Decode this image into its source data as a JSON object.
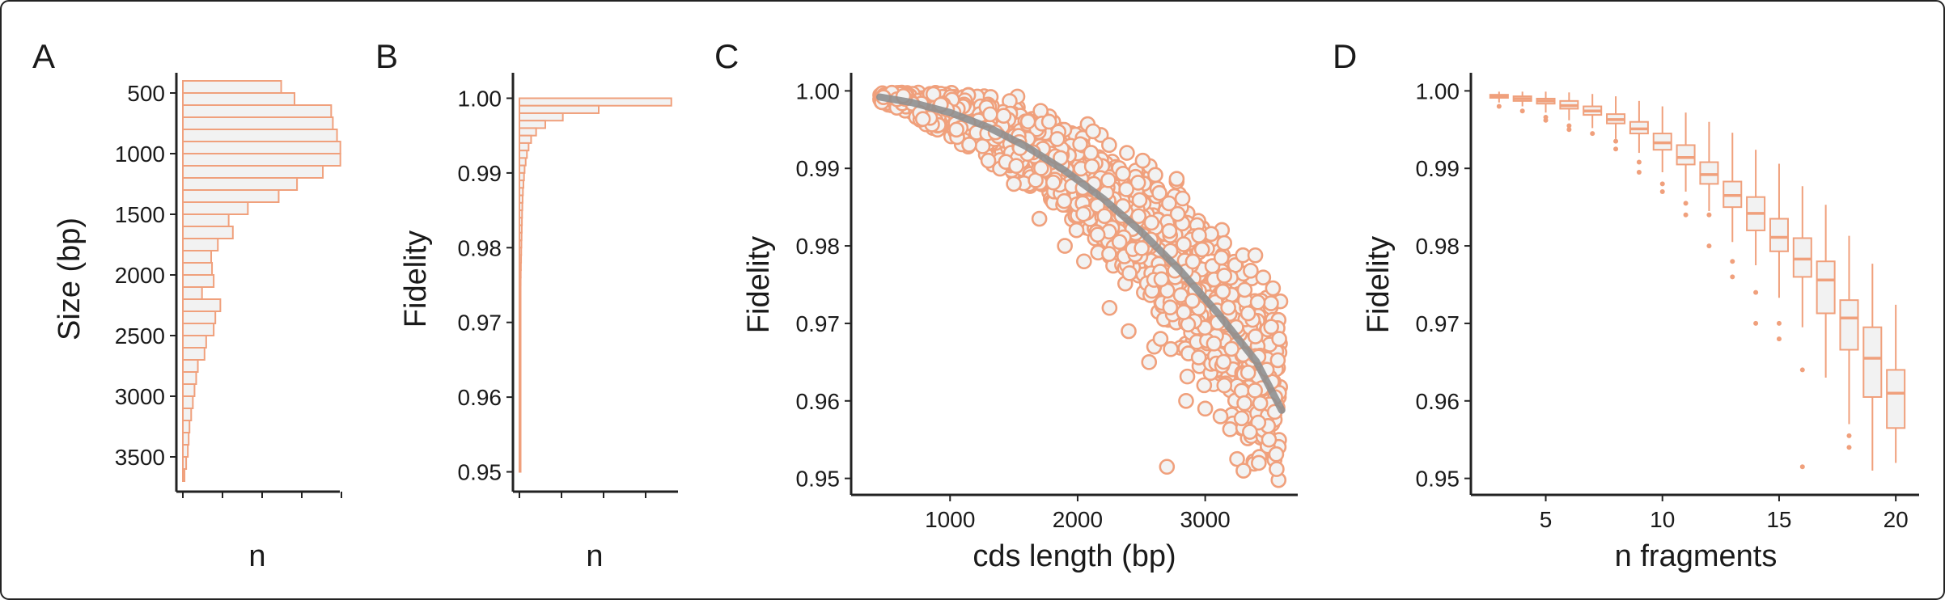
{
  "figure": {
    "accent_color": "#f0a07c",
    "fill_color": "#f2f2f2",
    "fit_color": "#8f8f8f"
  },
  "chart_data": [
    {
      "panel": "A",
      "type": "bar",
      "orientation": "horizontal",
      "xlabel": "n",
      "ylabel": "Size (bp)",
      "ylim": [
        3700,
        400
      ],
      "yticks": [
        "500",
        "1000",
        "1500",
        "2000",
        "2500",
        "3000",
        "3500"
      ],
      "bin_width": 100,
      "bins_start": [
        400,
        500,
        600,
        700,
        800,
        900,
        1000,
        1100,
        1200,
        1300,
        1400,
        1500,
        1600,
        1700,
        1800,
        1900,
        2000,
        2100,
        2200,
        2300,
        2400,
        2500,
        2600,
        2700,
        2800,
        2900,
        3000,
        3100,
        3200,
        3300,
        3400,
        3500,
        3600
      ],
      "values": [
        118,
        134,
        178,
        180,
        185,
        189,
        189,
        168,
        137,
        115,
        78,
        55,
        60,
        42,
        34,
        35,
        37,
        23,
        45,
        39,
        37,
        28,
        26,
        18,
        16,
        14,
        12,
        10,
        8,
        7,
        6,
        4,
        2
      ],
      "xlim": [
        0,
        200
      ],
      "grid": false
    },
    {
      "panel": "B",
      "type": "bar",
      "orientation": "horizontal",
      "xlabel": "n",
      "ylabel": "Fidelity",
      "ylim": [
        0.948,
        1.002
      ],
      "yticks": [
        "0.95",
        "0.96",
        "0.97",
        "0.98",
        "0.99",
        "1.00"
      ],
      "bin_width": 0.001,
      "bins_start": [
        0.999,
        0.998,
        0.997,
        0.996,
        0.995,
        0.994,
        0.993,
        0.992,
        0.991,
        0.99,
        0.989,
        0.988,
        0.987,
        0.986,
        0.985,
        0.984,
        0.983,
        0.982,
        0.981,
        0.98,
        0.979,
        0.978,
        0.977,
        0.976,
        0.975,
        0.974,
        0.973,
        0.972,
        0.971,
        0.97,
        0.969,
        0.968,
        0.967,
        0.966,
        0.965,
        0.964,
        0.963,
        0.962,
        0.961,
        0.96,
        0.959,
        0.958,
        0.957,
        0.956,
        0.955,
        0.954,
        0.953,
        0.952,
        0.951,
        0.95
      ],
      "values": [
        1820,
        950,
        520,
        310,
        200,
        140,
        110,
        90,
        75,
        62,
        55,
        48,
        42,
        38,
        35,
        32,
        30,
        28,
        26,
        24,
        22,
        20,
        18,
        16,
        15,
        14,
        13,
        12,
        11,
        10,
        9,
        9,
        8,
        8,
        7,
        7,
        6,
        6,
        5,
        5,
        5,
        4,
        4,
        4,
        3,
        3,
        3,
        2,
        2,
        2
      ],
      "xlim": [
        0,
        1900
      ],
      "grid": false
    },
    {
      "panel": "C",
      "type": "scatter",
      "xlabel": "cds length (bp)",
      "ylabel": "Fidelity",
      "xlim": [
        250,
        3700
      ],
      "ylim": [
        0.9485,
        1.0015
      ],
      "xticks": [
        "1000",
        "2000",
        "3000"
      ],
      "yticks": [
        "0.95",
        "0.96",
        "0.97",
        "0.98",
        "0.99",
        "1.00"
      ],
      "trend": {
        "x": [
          450,
          700,
          1000,
          1300,
          1600,
          1900,
          2200,
          2500,
          2800,
          3100,
          3400,
          3600
        ],
        "y": [
          0.9992,
          0.9985,
          0.9972,
          0.9953,
          0.9928,
          0.9897,
          0.9861,
          0.9818,
          0.9769,
          0.9713,
          0.9651,
          0.9588
        ]
      },
      "points": [
        [
          2700,
          0.9515
        ],
        [
          3120,
          0.958
        ],
        [
          3250,
          0.9525
        ],
        [
          3300,
          0.951
        ],
        [
          3420,
          0.952
        ],
        [
          3560,
          0.9512
        ],
        [
          2560,
          0.965
        ],
        [
          2600,
          0.967
        ],
        [
          2850,
          0.96
        ],
        [
          3000,
          0.959
        ],
        [
          3350,
          0.956
        ],
        [
          3500,
          0.955
        ],
        [
          1050,
          0.995
        ],
        [
          1300,
          0.991
        ],
        [
          1500,
          0.988
        ],
        [
          1700,
          0.9835
        ],
        [
          1900,
          0.98
        ],
        [
          2050,
          0.978
        ],
        [
          2250,
          0.972
        ],
        [
          2400,
          0.969
        ],
        [
          2650,
          0.968
        ],
        [
          3150,
          0.962
        ],
        [
          3580,
          0.968
        ]
      ],
      "grid": false
    },
    {
      "panel": "D",
      "type": "boxplot",
      "xlabel": "n fragments",
      "ylabel": "Fidelity",
      "xlim": [
        2,
        21
      ],
      "ylim": [
        0.9485,
        1.0015
      ],
      "xticks": [
        "5",
        "10",
        "15",
        "20"
      ],
      "yticks": [
        "0.95",
        "0.96",
        "0.97",
        "0.98",
        "0.99",
        "1.00"
      ],
      "categories": [
        3,
        4,
        5,
        6,
        7,
        8,
        9,
        10,
        11,
        12,
        13,
        14,
        15,
        16,
        17,
        18,
        19,
        20
      ],
      "q1": [
        0.9991,
        0.9987,
        0.99835,
        0.9977,
        0.9969,
        0.9958,
        0.9945,
        0.9924,
        0.9905,
        0.988,
        0.985,
        0.982,
        0.9793,
        0.976,
        0.9713,
        0.9666,
        0.9605,
        0.9565
      ],
      "median": [
        0.9993,
        0.999,
        0.9987,
        0.9981,
        0.9974,
        0.9963,
        0.9951,
        0.9933,
        0.9914,
        0.9892,
        0.9865,
        0.9842,
        0.9811,
        0.9783,
        0.9756,
        0.9707,
        0.9655,
        0.961
      ],
      "q3": [
        0.9995,
        0.9993,
        0.999,
        0.9987,
        0.998,
        0.997,
        0.996,
        0.9945,
        0.993,
        0.9908,
        0.9883,
        0.9863,
        0.9835,
        0.981,
        0.978,
        0.973,
        0.9695,
        0.964
      ],
      "whisker_low": [
        0.9985,
        0.998,
        0.9972,
        0.9962,
        0.9952,
        0.9938,
        0.992,
        0.9895,
        0.987,
        0.9845,
        0.9805,
        0.9775,
        0.9733,
        0.9695,
        0.963,
        0.957,
        0.951,
        0.952
      ],
      "whisker_high": [
        0.9999,
        0.9999,
        0.9999,
        0.9998,
        0.9996,
        0.9993,
        0.9987,
        0.998,
        0.9972,
        0.996,
        0.9946,
        0.9924,
        0.9906,
        0.9877,
        0.9853,
        0.9813,
        0.9777,
        0.9724
      ],
      "outliers": [
        [
          3,
          0.998
        ],
        [
          4,
          0.9974
        ],
        [
          5,
          0.9966
        ],
        [
          5,
          0.9962
        ],
        [
          6,
          0.9955
        ],
        [
          6,
          0.995
        ],
        [
          7,
          0.9945
        ],
        [
          8,
          0.9935
        ],
        [
          8,
          0.9925
        ],
        [
          9,
          0.9908
        ],
        [
          9,
          0.9895
        ],
        [
          10,
          0.988
        ],
        [
          10,
          0.987
        ],
        [
          11,
          0.9855
        ],
        [
          11,
          0.984
        ],
        [
          12,
          0.984
        ],
        [
          12,
          0.98
        ],
        [
          13,
          0.978
        ],
        [
          13,
          0.976
        ],
        [
          14,
          0.974
        ],
        [
          14,
          0.97
        ],
        [
          15,
          0.97
        ],
        [
          15,
          0.968
        ],
        [
          16,
          0.964
        ],
        [
          16,
          0.9515
        ],
        [
          18,
          0.9555
        ],
        [
          18,
          0.954
        ]
      ],
      "grid": false
    }
  ]
}
